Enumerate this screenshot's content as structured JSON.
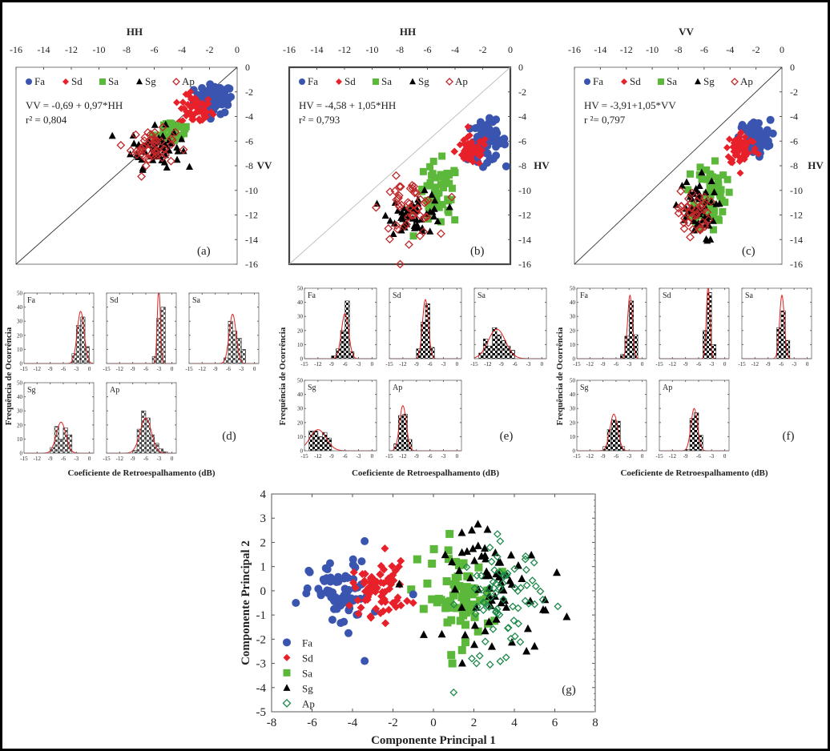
{
  "figure": {
    "colors": {
      "Fa": "#3a55b0",
      "Sd": "#e8202a",
      "Sa": "#5cb83a",
      "Sg": "#000000",
      "Ap_scatter": "#c0282a",
      "Ap_pca": "#1e8a4a",
      "hist_fill": "#555555",
      "hist_curve": "#e02020"
    }
  },
  "chart_data": [
    {
      "id": "a",
      "type": "scatter",
      "panel_label": "(a)",
      "xlabel": "HH",
      "ylabel": "VV",
      "xlim": [
        -16,
        0
      ],
      "ylim": [
        -16,
        0
      ],
      "x_ticks": [
        "-16",
        "-14",
        "-12",
        "-10",
        "-8",
        "-6",
        "-4",
        "-2",
        "0"
      ],
      "y_ticks": [
        "0",
        "-2",
        "-4",
        "-6",
        "-8",
        "-10",
        "-12",
        "-14",
        "-16"
      ],
      "legend": [
        "Fa",
        "Sd",
        "Sa",
        "Sg",
        "Ap"
      ],
      "equation": "VV = -0,69 + 0,97*HH",
      "r2": "r² = 0,804",
      "identity_line": true,
      "clusters": [
        {
          "name": "Fa",
          "cx": -1.7,
          "cy": -2.6,
          "sx": 0.7,
          "sy": 0.6,
          "n": 70
        },
        {
          "name": "Sd",
          "cx": -3.0,
          "cy": -3.5,
          "sx": 0.6,
          "sy": 0.6,
          "n": 60
        },
        {
          "name": "Sa",
          "cx": -4.6,
          "cy": -5.1,
          "sx": 0.7,
          "sy": 0.5,
          "n": 30
        },
        {
          "name": "Sg",
          "cx": -5.9,
          "cy": -6.5,
          "sx": 0.9,
          "sy": 0.8,
          "n": 60
        },
        {
          "name": "Ap",
          "cx": -6.1,
          "cy": -6.5,
          "sx": 0.8,
          "sy": 0.7,
          "n": 50
        }
      ]
    },
    {
      "id": "b",
      "type": "scatter",
      "panel_label": "(b)",
      "xlabel": "HH",
      "ylabel": "HV",
      "xlim": [
        -16,
        0
      ],
      "ylim": [
        -16,
        0
      ],
      "x_ticks": [
        "-16",
        "-14",
        "-12",
        "-10",
        "-8",
        "-6",
        "-4",
        "-2",
        "0"
      ],
      "y_ticks": [
        "0",
        "-2",
        "-4",
        "-6",
        "-8",
        "-10",
        "-12",
        "-14",
        "-16"
      ],
      "legend": [
        "Fa",
        "Sd",
        "Sa",
        "Sg",
        "Ap"
      ],
      "equation": "HV = -4,58 + 1,05*HH",
      "r2": "r² = 0,793",
      "identity_line": true,
      "clusters": [
        {
          "name": "Fa",
          "cx": -1.7,
          "cy": -6.0,
          "sx": 0.7,
          "sy": 0.8,
          "n": 70
        },
        {
          "name": "Sd",
          "cx": -2.8,
          "cy": -6.8,
          "sx": 0.6,
          "sy": 0.6,
          "n": 60
        },
        {
          "name": "Sa",
          "cx": -5.2,
          "cy": -10.4,
          "sx": 0.8,
          "sy": 1.3,
          "n": 50
        },
        {
          "name": "Sg",
          "cx": -6.8,
          "cy": -11.9,
          "sx": 1.0,
          "sy": 0.8,
          "n": 50
        },
        {
          "name": "Ap",
          "cx": -7.4,
          "cy": -11.5,
          "sx": 1.0,
          "sy": 1.2,
          "n": 50
        }
      ]
    },
    {
      "id": "c",
      "type": "scatter",
      "panel_label": "(c)",
      "xlabel": "VV",
      "ylabel": "HV",
      "xlim": [
        -16,
        0
      ],
      "ylim": [
        -16,
        0
      ],
      "x_ticks": [
        "-16",
        "-14",
        "-12",
        "-10",
        "-8",
        "-6",
        "-4",
        "-2",
        "0"
      ],
      "y_ticks": [
        "0",
        "-2",
        "-4",
        "-6",
        "-8",
        "-10",
        "-12",
        "-14",
        "-16"
      ],
      "legend": [
        "Fa",
        "Sd",
        "Sa",
        "Sg",
        "Ap"
      ],
      "equation": "HV = -3,91+1,05*VV",
      "r2": "r ²= 0,797",
      "identity_line": true,
      "clusters": [
        {
          "name": "Fa",
          "cx": -2.1,
          "cy": -5.7,
          "sx": 0.6,
          "sy": 0.7,
          "n": 70
        },
        {
          "name": "Sd",
          "cx": -3.1,
          "cy": -6.6,
          "sx": 0.6,
          "sy": 0.7,
          "n": 60
        },
        {
          "name": "Sa",
          "cx": -5.5,
          "cy": -10.3,
          "sx": 0.6,
          "sy": 1.5,
          "n": 60
        },
        {
          "name": "Sg",
          "cx": -6.7,
          "cy": -11.6,
          "sx": 0.8,
          "sy": 1.3,
          "n": 50
        },
        {
          "name": "Ap",
          "cx": -6.8,
          "cy": -11.8,
          "sx": 0.6,
          "sy": 0.9,
          "n": 40
        }
      ]
    },
    {
      "id": "d",
      "type": "bar",
      "panel_label": "(d)",
      "xlabel": "Coeficiente de Retroespalhamento (dB)",
      "ylabel": "Frequência de Ocorrência",
      "xlim": [
        -15,
        1
      ],
      "ylim": [
        0,
        50
      ],
      "x_ticks": [
        "-15",
        "-12",
        "-9",
        "-6",
        "-3",
        "0"
      ],
      "y_ticks": [
        "0",
        "10",
        "20",
        "30",
        "40",
        "50"
      ],
      "panels": [
        {
          "name": "Fa",
          "bins": [
            -4,
            -3,
            -2,
            -1
          ],
          "counts": [
            7,
            27,
            33,
            12
          ],
          "mean": -2.0,
          "sd": 0.8,
          "peak": 37
        },
        {
          "name": "Sd",
          "bins": [
            -4.5,
            -3.5,
            -2.5
          ],
          "counts": [
            5,
            32,
            40
          ],
          "mean": -3.0,
          "sd": 0.35,
          "peak": 55
        },
        {
          "name": "Sa",
          "bins": [
            -7,
            -6,
            -5,
            -4,
            -3
          ],
          "counts": [
            4,
            30,
            23,
            18,
            10
          ],
          "mean": -5.0,
          "sd": 0.8,
          "peak": 35
        },
        {
          "name": "Sg",
          "bins": [
            -9,
            -8,
            -7,
            -6,
            -5,
            -4
          ],
          "counts": [
            4,
            19,
            10,
            18,
            13,
            0
          ],
          "mean": -6.5,
          "sd": 1.1,
          "peak": 22
        },
        {
          "name": "Ap",
          "bins": [
            -9,
            -8,
            -7,
            -6,
            -5,
            -4,
            -3,
            -2
          ],
          "counts": [
            2,
            17,
            30,
            25,
            13,
            7,
            3,
            1
          ],
          "mean": -6.0,
          "sd": 1.3,
          "peak": 25
        }
      ]
    },
    {
      "id": "e",
      "type": "bar",
      "panel_label": "(e)",
      "xlabel": "Coeficiente de Retroespalhamento (dB)",
      "ylabel": "Frequência de Ocorrência",
      "xlim": [
        -15,
        1
      ],
      "ylim": [
        0,
        50
      ],
      "x_ticks": [
        "-15",
        "-12",
        "-9",
        "-6",
        "-3",
        "0"
      ],
      "y_ticks": [
        "0",
        "10",
        "20",
        "30",
        "40",
        "50"
      ],
      "panels": [
        {
          "name": "Fa",
          "bins": [
            -9,
            -8,
            -7,
            -6,
            -5
          ],
          "counts": [
            2,
            7,
            20,
            41,
            5
          ],
          "mean": -6.0,
          "sd": 0.8,
          "peak": 32
        },
        {
          "name": "Sd",
          "bins": [
            -9,
            -8,
            -7,
            -6
          ],
          "counts": [
            7,
            26,
            39,
            8
          ],
          "mean": -7.0,
          "sd": 0.65,
          "peak": 42
        },
        {
          "name": "Sa",
          "bins": [
            -14,
            -13,
            -12,
            -11,
            -10,
            -9,
            -8,
            -7
          ],
          "counts": [
            4,
            14,
            9,
            22,
            17,
            13,
            9,
            6
          ],
          "mean": -10.0,
          "sd": 1.9,
          "peak": 21
        },
        {
          "name": "Sg",
          "bins": [
            -14,
            -13,
            -12,
            -11,
            -10
          ],
          "counts": [
            14,
            14,
            10,
            13,
            9
          ],
          "mean": -12.0,
          "sd": 1.8,
          "peak": 15
        },
        {
          "name": "Ap",
          "bins": [
            -14,
            -13,
            -12,
            -11
          ],
          "counts": [
            5,
            25,
            26,
            8
          ],
          "mean": -12.0,
          "sd": 0.75,
          "peak": 32
        }
      ]
    },
    {
      "id": "f",
      "type": "bar",
      "panel_label": "(f)",
      "xlabel": "Coeficiente de Retroespalhamento (dB)",
      "ylabel": "Frequência de Ocorrência",
      "xlim": [
        -15,
        1
      ],
      "ylim": [
        0,
        50
      ],
      "x_ticks": [
        "-15",
        "-12",
        "-9",
        "-6",
        "-3",
        "0"
      ],
      "y_ticks": [
        "0",
        "10",
        "20",
        "30",
        "40",
        "50"
      ],
      "panels": [
        {
          "name": "Fa",
          "bins": [
            -5,
            -4,
            -3,
            -2
          ],
          "counts": [
            3,
            16,
            41,
            17
          ],
          "mean": -2.8,
          "sd": 0.55,
          "peak": 45
        },
        {
          "name": "Sd",
          "bins": [
            -5,
            -4,
            -3,
            -2
          ],
          "counts": [
            20,
            47,
            10,
            0
          ],
          "mean": -3.8,
          "sd": 0.4,
          "peak": 52
        },
        {
          "name": "Sa",
          "bins": [
            -7,
            -6,
            -5,
            -4
          ],
          "counts": [
            22,
            34,
            13,
            0
          ],
          "mean": -5.8,
          "sd": 0.55,
          "peak": 45
        },
        {
          "name": "Sg",
          "bins": [
            -9,
            -8,
            -7,
            -6,
            -5,
            -4
          ],
          "counts": [
            3,
            15,
            22,
            21,
            3,
            0
          ],
          "mean": -6.5,
          "sd": 0.9,
          "peak": 26
        },
        {
          "name": "Ap",
          "bins": [
            -9,
            -8,
            -7,
            -6,
            -5
          ],
          "counts": [
            1,
            23,
            27,
            11,
            0
          ],
          "mean": -7.0,
          "sd": 0.75,
          "peak": 30
        }
      ]
    },
    {
      "id": "g",
      "type": "scatter",
      "panel_label": "(g)",
      "xlabel": "Componente Principal 1",
      "ylabel": "Componente Principal 2",
      "xlim": [
        -8,
        8
      ],
      "ylim": [
        -5,
        4
      ],
      "x_ticks": [
        "-8",
        "-6",
        "-4",
        "-2",
        "0",
        "2",
        "4",
        "6",
        "8"
      ],
      "y_ticks": [
        "4",
        "3",
        "2",
        "1",
        "0",
        "-1",
        "-2",
        "-3",
        "-4",
        "-5"
      ],
      "legend": [
        "Fa",
        "Sd",
        "Sa",
        "Sg",
        "Ap"
      ],
      "legend_position": "bottom-left",
      "clusters": [
        {
          "name": "Fa",
          "cx": -4.6,
          "cy": -0.2,
          "sx": 0.75,
          "sy": 0.7,
          "n": 70
        },
        {
          "name": "Sd",
          "cx": -2.7,
          "cy": 0.1,
          "sx": 0.65,
          "sy": 0.55,
          "n": 70
        },
        {
          "name": "Sa",
          "cx": 1.3,
          "cy": -0.3,
          "sx": 0.8,
          "sy": 0.9,
          "n": 70
        },
        {
          "name": "Sg",
          "cx": 3.2,
          "cy": 0.1,
          "sx": 1.3,
          "sy": 1.1,
          "n": 65
        },
        {
          "name": "Ap",
          "cx": 3.4,
          "cy": -0.3,
          "sx": 1.0,
          "sy": 1.1,
          "n": 70
        }
      ],
      "outliers": [
        {
          "name": "Fa",
          "x": -3.4,
          "y": 2.05
        },
        {
          "name": "Fa",
          "x": -3.4,
          "y": -2.9
        },
        {
          "name": "Fa",
          "x": -6.8,
          "y": -0.5
        },
        {
          "name": "Fa",
          "x": -1.0,
          "y": -0.15
        },
        {
          "name": "Fa",
          "x": -4.2,
          "y": -1.75
        },
        {
          "name": "Sd",
          "x": -2.4,
          "y": 1.75
        },
        {
          "name": "Sd",
          "x": -1.0,
          "y": -0.5
        },
        {
          "name": "Sa",
          "x": 0.8,
          "y": 2.35
        },
        {
          "name": "Sa",
          "x": -0.3,
          "y": 0.3
        },
        {
          "name": "Sa",
          "x": -0.8,
          "y": 1.3
        },
        {
          "name": "Sg",
          "x": 2.2,
          "y": 2.75
        },
        {
          "name": "Sg",
          "x": 1.9,
          "y": 2.5
        },
        {
          "name": "Sg",
          "x": 4.6,
          "y": -2.5
        },
        {
          "name": "Sg",
          "x": 5.0,
          "y": -2.3
        },
        {
          "name": "Sg",
          "x": 6.1,
          "y": 0.75
        },
        {
          "name": "Ap",
          "x": 1.0,
          "y": -4.2
        },
        {
          "name": "Ap",
          "x": 2.8,
          "y": -3.05
        },
        {
          "name": "Ap",
          "x": 1.9,
          "y": -2.8
        },
        {
          "name": "Ap",
          "x": 3.3,
          "y": 2.05
        }
      ]
    }
  ]
}
